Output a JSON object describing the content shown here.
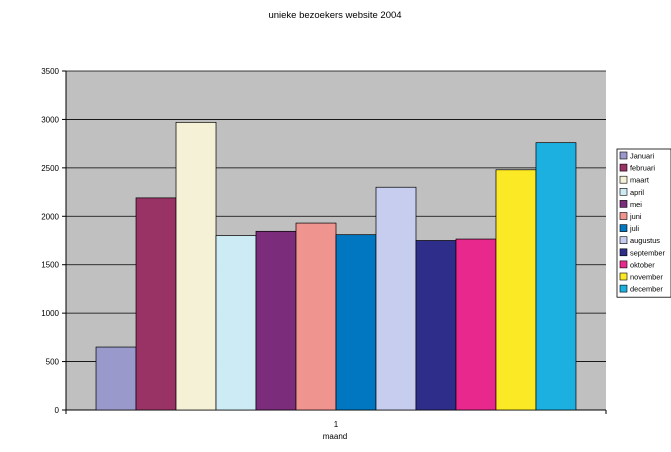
{
  "chart_data": {
    "type": "bar",
    "title": "unieke bezoekers website 2004",
    "xlabel": "maand",
    "ylabel": "",
    "categories": [
      "1"
    ],
    "ylim": [
      0,
      3500
    ],
    "yticks": [
      0,
      500,
      1000,
      1500,
      2000,
      2500,
      3000,
      3500
    ],
    "grid": true,
    "legend_position": "right",
    "plot_background": "#c0c0c0",
    "series": [
      {
        "name": "Januari",
        "values": [
          650
        ],
        "color": "#9999cc"
      },
      {
        "name": "februari",
        "values": [
          2190
        ],
        "color": "#993366"
      },
      {
        "name": "maart",
        "values": [
          2970
        ],
        "color": "#f4f1d6"
      },
      {
        "name": "april",
        "values": [
          1800
        ],
        "color": "#ccebf4"
      },
      {
        "name": "mei",
        "values": [
          1845
        ],
        "color": "#7b2c7b"
      },
      {
        "name": "juni",
        "values": [
          1930
        ],
        "color": "#f09490"
      },
      {
        "name": "juli",
        "values": [
          1810
        ],
        "color": "#0077c0"
      },
      {
        "name": "augustus",
        "values": [
          2300
        ],
        "color": "#c6cdee"
      },
      {
        "name": "september",
        "values": [
          1750
        ],
        "color": "#2e2e8a"
      },
      {
        "name": "oktober",
        "values": [
          1765
        ],
        "color": "#e8288c"
      },
      {
        "name": "november",
        "values": [
          2480
        ],
        "color": "#fbe926"
      },
      {
        "name": "december",
        "values": [
          2760
        ],
        "color": "#1bb0e0"
      }
    ]
  }
}
